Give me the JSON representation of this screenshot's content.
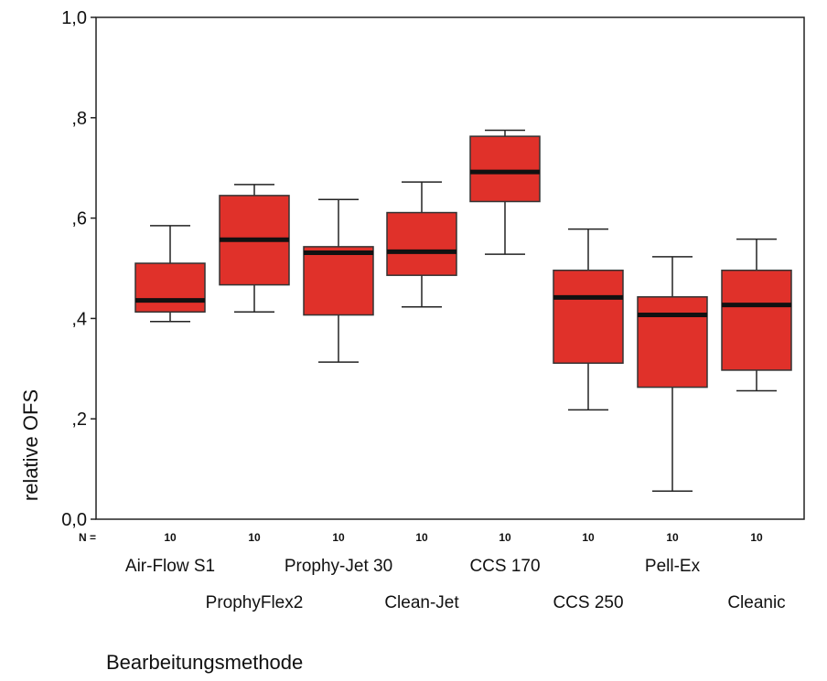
{
  "chart_data": {
    "type": "boxplot",
    "xlabel": "Bearbeitungsmethode",
    "ylabel": "relative OFS",
    "ylim": [
      0,
      1
    ],
    "yticks": [
      "0,0",
      ",2",
      ",4",
      ",6",
      ",8",
      "1,0"
    ],
    "n_label": "N =",
    "box_color": "#e0312a",
    "categories": [
      "Air-Flow S1",
      "ProphyFlex2",
      "Prophy-Jet 30",
      "Clean-Jet",
      "CCS 170",
      "CCS 250",
      "Pell-Ex",
      "Cleanic"
    ],
    "n": [
      "10",
      "10",
      "10",
      "10",
      "10",
      "10",
      "10",
      "10"
    ],
    "boxes": [
      {
        "min": 0.394,
        "q1": 0.413,
        "median": 0.436,
        "q3": 0.51,
        "max": 0.585
      },
      {
        "min": 0.413,
        "q1": 0.467,
        "median": 0.557,
        "q3": 0.645,
        "max": 0.667
      },
      {
        "min": 0.313,
        "q1": 0.407,
        "median": 0.531,
        "q3": 0.543,
        "max": 0.637
      },
      {
        "min": 0.423,
        "q1": 0.486,
        "median": 0.533,
        "q3": 0.611,
        "max": 0.672
      },
      {
        "min": 0.528,
        "q1": 0.633,
        "median": 0.692,
        "q3": 0.763,
        "max": 0.775
      },
      {
        "min": 0.218,
        "q1": 0.311,
        "median": 0.442,
        "q3": 0.496,
        "max": 0.578
      },
      {
        "min": 0.056,
        "q1": 0.263,
        "median": 0.407,
        "q3": 0.443,
        "max": 0.523
      },
      {
        "min": 0.256,
        "q1": 0.297,
        "median": 0.427,
        "q3": 0.496,
        "max": 0.558
      }
    ]
  }
}
